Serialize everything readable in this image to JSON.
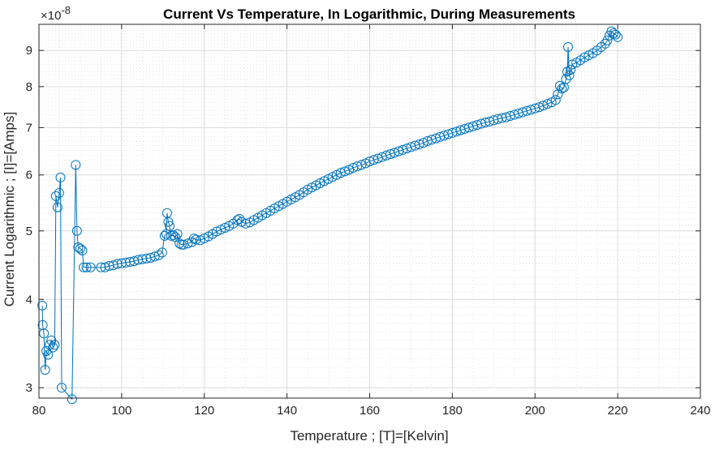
{
  "chart_data": {
    "type": "line",
    "title": "Current Vs Temperature, In Logarithmic, During Measurements",
    "xlabel": "Temperature ; [T]=[Kelvin]",
    "ylabel": "Current Logarithmic ; [I]=[Amps]",
    "exponent_label": "×10",
    "exponent_power": "-8",
    "yscale": "log",
    "xlim": [
      80,
      240
    ],
    "ylim": [
      2.9,
      9.8
    ],
    "xticks": [
      80,
      100,
      120,
      140,
      160,
      180,
      200,
      220,
      240
    ],
    "xtick_labels": [
      "80",
      "100",
      "120",
      "140",
      "160",
      "180",
      "200",
      "220",
      "240"
    ],
    "yticks": [
      3,
      4,
      5,
      6,
      7,
      8,
      9
    ],
    "ytick_labels": [
      "3",
      "4",
      "5",
      "6",
      "7",
      "8",
      "9"
    ],
    "grid": true,
    "minor_grid": true,
    "marker": "circle",
    "series_color": "#0072bd",
    "series": [
      {
        "points": [
          [
            80.8,
            3.92
          ],
          [
            80.9,
            3.68
          ],
          [
            81.2,
            3.58
          ],
          [
            81.5,
            3.18
          ],
          [
            81.8,
            3.38
          ],
          [
            82.2,
            3.34
          ],
          [
            82.6,
            3.45
          ],
          [
            83.0,
            3.5
          ],
          [
            83.4,
            3.42
          ],
          [
            83.8,
            3.45
          ],
          [
            84.1,
            5.6
          ],
          [
            84.5,
            5.4
          ],
          [
            84.9,
            5.66
          ],
          [
            85.2,
            5.95
          ],
          [
            85.5,
            3.0
          ],
          [
            88.0,
            2.89
          ],
          [
            88.9,
            6.2
          ],
          [
            89.2,
            5.0
          ],
          [
            89.5,
            4.74
          ],
          [
            90.0,
            4.72
          ],
          [
            90.5,
            4.69
          ],
          [
            90.8,
            4.44
          ],
          [
            91.5,
            4.44
          ],
          [
            92.5,
            4.44
          ],
          [
            95.0,
            4.44
          ],
          [
            96.0,
            4.44
          ],
          [
            97.0,
            4.46
          ],
          [
            98.0,
            4.47
          ],
          [
            99.0,
            4.49
          ],
          [
            100.0,
            4.5
          ],
          [
            101.0,
            4.51
          ],
          [
            102.0,
            4.52
          ],
          [
            103.0,
            4.53
          ],
          [
            104.0,
            4.55
          ],
          [
            105.0,
            4.56
          ],
          [
            106.0,
            4.57
          ],
          [
            107.0,
            4.58
          ],
          [
            108.0,
            4.6
          ],
          [
            109.0,
            4.62
          ],
          [
            109.8,
            4.66
          ],
          [
            110.4,
            4.92
          ],
          [
            110.8,
            4.95
          ],
          [
            111.0,
            5.3
          ],
          [
            111.3,
            5.15
          ],
          [
            111.6,
            5.08
          ],
          [
            112.0,
            4.92
          ],
          [
            112.5,
            4.93
          ],
          [
            113.0,
            4.9
          ],
          [
            113.5,
            4.95
          ],
          [
            114.0,
            4.8
          ],
          [
            114.5,
            4.78
          ],
          [
            115.0,
            4.78
          ],
          [
            116.0,
            4.8
          ],
          [
            117.0,
            4.82
          ],
          [
            117.5,
            4.88
          ],
          [
            118.0,
            4.86
          ],
          [
            119.0,
            4.85
          ],
          [
            120.0,
            4.88
          ],
          [
            121.0,
            4.91
          ],
          [
            122.0,
            4.95
          ],
          [
            123.0,
            4.99
          ],
          [
            124.0,
            5.02
          ],
          [
            125.0,
            5.05
          ],
          [
            126.0,
            5.08
          ],
          [
            127.0,
            5.12
          ],
          [
            128.0,
            5.18
          ],
          [
            128.5,
            5.2
          ],
          [
            129.0,
            5.15
          ],
          [
            130.0,
            5.12
          ],
          [
            131.0,
            5.14
          ],
          [
            132.0,
            5.18
          ],
          [
            133.0,
            5.22
          ],
          [
            134.0,
            5.26
          ],
          [
            135.0,
            5.3
          ],
          [
            136.0,
            5.34
          ],
          [
            137.0,
            5.38
          ],
          [
            138.0,
            5.42
          ],
          [
            139.0,
            5.46
          ],
          [
            140.0,
            5.5
          ],
          [
            141.0,
            5.54
          ],
          [
            142.0,
            5.58
          ],
          [
            143.0,
            5.62
          ],
          [
            144.0,
            5.67
          ],
          [
            145.0,
            5.72
          ],
          [
            146.0,
            5.76
          ],
          [
            147.0,
            5.8
          ],
          [
            148.0,
            5.84
          ],
          [
            149.0,
            5.88
          ],
          [
            150.0,
            5.92
          ],
          [
            151.0,
            5.96
          ],
          [
            152.0,
            6.0
          ],
          [
            153.0,
            6.04
          ],
          [
            154.0,
            6.07
          ],
          [
            155.0,
            6.1
          ],
          [
            156.0,
            6.14
          ],
          [
            157.0,
            6.17
          ],
          [
            158.0,
            6.2
          ],
          [
            159.0,
            6.23
          ],
          [
            160.0,
            6.27
          ],
          [
            161.0,
            6.3
          ],
          [
            162.0,
            6.33
          ],
          [
            163.0,
            6.36
          ],
          [
            164.0,
            6.39
          ],
          [
            165.0,
            6.42
          ],
          [
            166.0,
            6.45
          ],
          [
            167.0,
            6.48
          ],
          [
            168.0,
            6.51
          ],
          [
            169.0,
            6.54
          ],
          [
            170.0,
            6.57
          ],
          [
            171.0,
            6.6
          ],
          [
            172.0,
            6.63
          ],
          [
            173.0,
            6.66
          ],
          [
            174.0,
            6.7
          ],
          [
            175.0,
            6.73
          ],
          [
            176.0,
            6.76
          ],
          [
            177.0,
            6.79
          ],
          [
            178.0,
            6.82
          ],
          [
            179.0,
            6.85
          ],
          [
            180.0,
            6.88
          ],
          [
            181.0,
            6.91
          ],
          [
            182.0,
            6.94
          ],
          [
            183.0,
            6.97
          ],
          [
            184.0,
            7.0
          ],
          [
            185.0,
            7.03
          ],
          [
            186.0,
            7.06
          ],
          [
            187.0,
            7.09
          ],
          [
            188.0,
            7.12
          ],
          [
            189.0,
            7.14
          ],
          [
            190.0,
            7.17
          ],
          [
            191.0,
            7.2
          ],
          [
            192.0,
            7.22
          ],
          [
            193.0,
            7.24
          ],
          [
            194.0,
            7.27
          ],
          [
            195.0,
            7.3
          ],
          [
            196.0,
            7.33
          ],
          [
            197.0,
            7.36
          ],
          [
            198.0,
            7.39
          ],
          [
            199.0,
            7.42
          ],
          [
            200.0,
            7.45
          ],
          [
            201.0,
            7.48
          ],
          [
            202.0,
            7.52
          ],
          [
            203.0,
            7.56
          ],
          [
            204.0,
            7.6
          ],
          [
            205.0,
            7.66
          ],
          [
            205.5,
            7.8
          ],
          [
            206.0,
            8.02
          ],
          [
            206.5,
            7.95
          ],
          [
            207.0,
            7.98
          ],
          [
            207.5,
            8.2
          ],
          [
            207.8,
            8.4
          ],
          [
            208.0,
            9.1
          ],
          [
            208.3,
            8.3
          ],
          [
            208.6,
            8.45
          ],
          [
            209.0,
            8.6
          ],
          [
            210.0,
            8.65
          ],
          [
            211.0,
            8.72
          ],
          [
            212.0,
            8.8
          ],
          [
            213.0,
            8.86
          ],
          [
            214.0,
            8.92
          ],
          [
            215.0,
            9.0
          ],
          [
            216.0,
            9.1
          ],
          [
            217.0,
            9.2
          ],
          [
            217.5,
            9.3
          ],
          [
            218.0,
            9.45
          ],
          [
            218.5,
            9.58
          ],
          [
            219.0,
            9.52
          ],
          [
            219.5,
            9.48
          ],
          [
            220.0,
            9.4
          ]
        ]
      }
    ]
  }
}
